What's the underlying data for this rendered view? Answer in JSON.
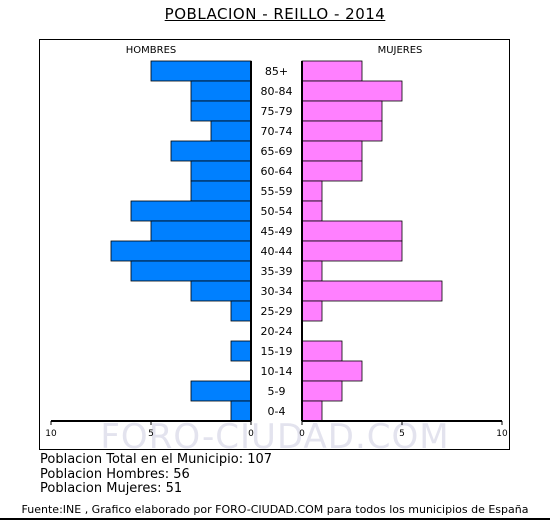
{
  "title": "POBLACION - REILLO - 2014",
  "watermark": "FORO-CIUDAD.COM",
  "chart_data": {
    "type": "bar",
    "orientation": "horizontal-pyramid",
    "categories": [
      "85+",
      "80-84",
      "75-79",
      "70-74",
      "65-69",
      "60-64",
      "55-59",
      "50-54",
      "45-49",
      "40-44",
      "35-39",
      "30-34",
      "25-29",
      "20-24",
      "15-19",
      "10-14",
      "5-9",
      "0-4"
    ],
    "series": [
      {
        "name": "HOMBRES",
        "color": "#0080ff",
        "values": [
          5,
          3,
          3,
          2,
          4,
          3,
          3,
          6,
          5,
          7,
          6,
          3,
          1,
          0,
          1,
          0,
          3,
          1
        ]
      },
      {
        "name": "MUJERES",
        "color": "#ff80ff",
        "values": [
          3,
          5,
          4,
          4,
          3,
          3,
          1,
          1,
          5,
          5,
          1,
          7,
          1,
          0,
          2,
          3,
          2,
          1
        ]
      }
    ],
    "xlim": [
      0,
      10
    ],
    "x_ticks": [
      "10",
      "5",
      "0",
      "0",
      "5",
      "10"
    ]
  },
  "info": {
    "total": "Poblacion Total en el Municipio: 107",
    "hombres": "Poblacion Hombres: 56",
    "mujeres": "Poblacion Mujeres: 51"
  },
  "footer": "Fuente:INE , Grafico elaborado por FORO-CIUDAD.COM para todos los municipios de España"
}
